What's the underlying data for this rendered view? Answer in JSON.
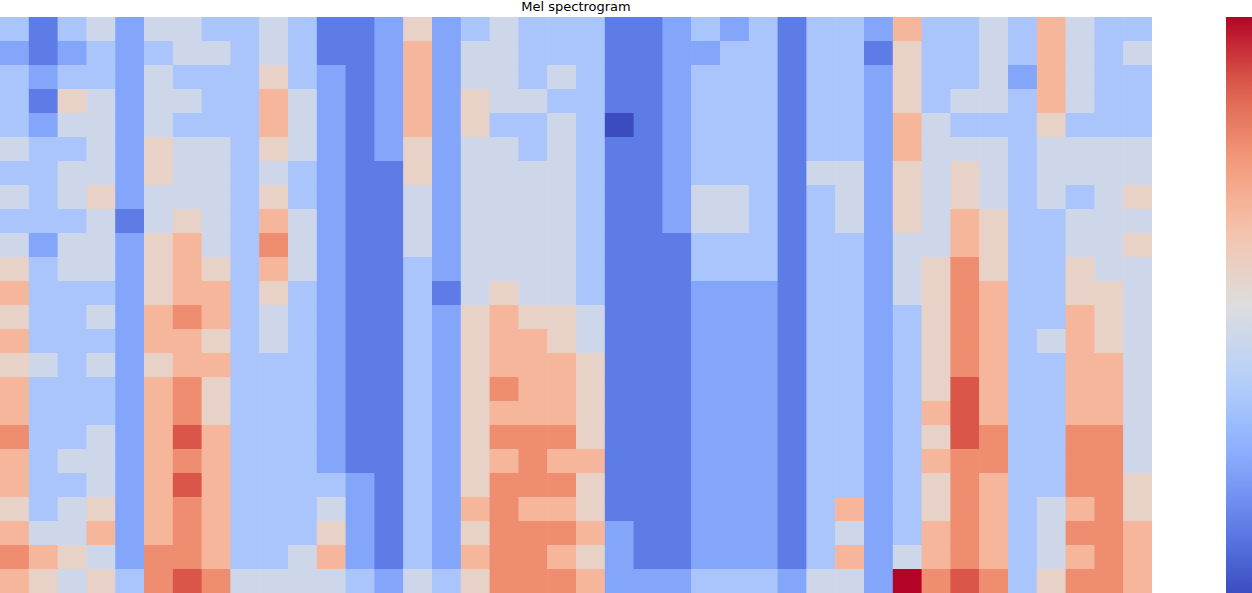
{
  "chart_data": {
    "type": "heatmap",
    "title": "Mel spectrogram",
    "color": "coolwarm",
    "tick_labels": false,
    "color_range": [
      0,
      9
    ],
    "cells": [
      [
        3,
        2,
        3,
        3,
        3,
        4,
        3,
        4,
        3,
        4,
        5,
        6,
        5,
        6,
        5,
        6,
        6,
        7,
        6,
        6,
        5,
        6,
        7,
        6
      ],
      [
        1,
        1,
        2,
        1,
        2,
        3,
        3,
        3,
        3,
        2,
        3,
        3,
        3,
        3,
        4,
        3,
        3,
        3,
        3,
        3,
        3,
        4,
        6,
        5
      ],
      [
        3,
        2,
        3,
        5,
        4,
        3,
        4,
        4,
        3,
        4,
        4,
        3,
        3,
        3,
        3,
        3,
        3,
        3,
        4,
        3,
        4,
        4,
        5,
        4
      ],
      [
        4,
        3,
        3,
        4,
        4,
        4,
        4,
        5,
        4,
        4,
        4,
        3,
        4,
        3,
        4,
        3,
        3,
        4,
        4,
        4,
        5,
        6,
        4,
        5
      ],
      [
        2,
        2,
        2,
        2,
        2,
        2,
        2,
        2,
        1,
        2,
        2,
        2,
        2,
        2,
        2,
        2,
        2,
        2,
        2,
        2,
        2,
        2,
        2,
        3
      ],
      [
        4,
        3,
        4,
        4,
        4,
        5,
        5,
        4,
        4,
        5,
        5,
        5,
        6,
        6,
        5,
        6,
        6,
        6,
        6,
        6,
        6,
        6,
        7,
        7
      ],
      [
        4,
        4,
        3,
        4,
        3,
        4,
        4,
        4,
        5,
        6,
        6,
        6,
        7,
        6,
        6,
        7,
        7,
        8,
        7,
        8,
        7,
        7,
        7,
        8
      ],
      [
        3,
        4,
        3,
        3,
        3,
        4,
        4,
        4,
        4,
        4,
        5,
        6,
        6,
        5,
        6,
        5,
        5,
        6,
        6,
        6,
        6,
        6,
        6,
        7
      ],
      [
        3,
        3,
        3,
        3,
        3,
        3,
        3,
        3,
        3,
        3,
        3,
        3,
        3,
        3,
        3,
        3,
        3,
        3,
        3,
        3,
        3,
        3,
        3,
        4
      ],
      [
        4,
        4,
        5,
        6,
        6,
        5,
        4,
        5,
        6,
        7,
        6,
        5,
        4,
        4,
        3,
        3,
        3,
        3,
        3,
        3,
        3,
        3,
        3,
        4
      ],
      [
        3,
        3,
        3,
        4,
        4,
        4,
        3,
        3,
        4,
        4,
        4,
        3,
        3,
        3,
        3,
        3,
        3,
        3,
        3,
        3,
        3,
        3,
        4,
        4
      ],
      [
        1,
        1,
        2,
        2,
        2,
        2,
        2,
        2,
        2,
        2,
        2,
        2,
        2,
        2,
        2,
        2,
        2,
        2,
        2,
        3,
        4,
        5,
        6,
        4
      ],
      [
        1,
        1,
        1,
        1,
        1,
        1,
        1,
        1,
        1,
        1,
        1,
        1,
        1,
        1,
        1,
        1,
        1,
        1,
        1,
        2,
        2,
        2,
        2,
        3
      ],
      [
        2,
        2,
        2,
        2,
        2,
        2,
        1,
        1,
        1,
        1,
        1,
        1,
        1,
        1,
        1,
        1,
        1,
        1,
        1,
        1,
        1,
        1,
        1,
        2
      ],
      [
        5,
        6,
        6,
        6,
        6,
        5,
        5,
        4,
        4,
        4,
        3,
        3,
        3,
        3,
        3,
        3,
        3,
        3,
        3,
        3,
        3,
        3,
        3,
        4
      ],
      [
        2,
        2,
        2,
        2,
        2,
        2,
        2,
        2,
        2,
        2,
        2,
        1,
        2,
        2,
        2,
        2,
        2,
        2,
        2,
        2,
        2,
        2,
        2,
        3
      ],
      [
        3,
        4,
        4,
        5,
        5,
        4,
        4,
        4,
        4,
        4,
        4,
        4,
        5,
        5,
        5,
        5,
        5,
        5,
        5,
        5,
        6,
        5,
        6,
        5
      ],
      [
        4,
        4,
        4,
        4,
        3,
        4,
        4,
        4,
        4,
        4,
        4,
        5,
        6,
        6,
        6,
        7,
        6,
        7,
        6,
        7,
        7,
        7,
        7,
        7
      ],
      [
        3,
        3,
        3,
        4,
        3,
        3,
        4,
        4,
        4,
        4,
        4,
        4,
        5,
        6,
        6,
        6,
        6,
        7,
        7,
        7,
        6,
        7,
        7,
        7
      ],
      [
        3,
        3,
        4,
        3,
        4,
        4,
        4,
        4,
        4,
        4,
        4,
        4,
        5,
        5,
        6,
        6,
        6,
        7,
        6,
        7,
        6,
        7,
        6,
        7
      ],
      [
        3,
        3,
        3,
        3,
        3,
        3,
        3,
        3,
        3,
        3,
        3,
        3,
        4,
        4,
        5,
        5,
        5,
        5,
        6,
        5,
        5,
        6,
        5,
        6
      ],
      [
        1,
        1,
        1,
        1,
        0,
        1,
        1,
        1,
        1,
        1,
        1,
        1,
        1,
        1,
        1,
        1,
        1,
        1,
        1,
        1,
        1,
        2,
        2,
        2
      ],
      [
        1,
        1,
        1,
        1,
        1,
        1,
        1,
        1,
        1,
        1,
        1,
        1,
        1,
        1,
        1,
        1,
        1,
        1,
        1,
        1,
        1,
        1,
        1,
        2
      ],
      [
        2,
        2,
        2,
        2,
        2,
        2,
        2,
        2,
        2,
        1,
        1,
        1,
        1,
        1,
        1,
        1,
        1,
        1,
        1,
        1,
        1,
        1,
        1,
        2
      ],
      [
        3,
        2,
        3,
        3,
        3,
        3,
        3,
        4,
        4,
        3,
        3,
        2,
        2,
        2,
        2,
        2,
        2,
        2,
        2,
        2,
        2,
        2,
        2,
        3
      ],
      [
        2,
        3,
        3,
        3,
        3,
        3,
        3,
        4,
        4,
        3,
        3,
        2,
        2,
        2,
        2,
        2,
        2,
        2,
        2,
        2,
        2,
        2,
        2,
        3
      ],
      [
        3,
        3,
        3,
        3,
        3,
        3,
        3,
        3,
        3,
        3,
        3,
        2,
        2,
        2,
        2,
        2,
        2,
        2,
        2,
        2,
        2,
        2,
        2,
        3
      ],
      [
        1,
        1,
        1,
        1,
        1,
        1,
        1,
        1,
        1,
        1,
        1,
        1,
        1,
        1,
        1,
        1,
        1,
        1,
        1,
        1,
        1,
        1,
        1,
        2
      ],
      [
        3,
        3,
        3,
        3,
        3,
        3,
        4,
        3,
        3,
        3,
        3,
        3,
        3,
        3,
        3,
        3,
        3,
        3,
        3,
        3,
        3,
        3,
        3,
        4
      ],
      [
        3,
        3,
        3,
        3,
        3,
        3,
        4,
        4,
        4,
        3,
        3,
        3,
        3,
        3,
        3,
        3,
        3,
        3,
        3,
        3,
        6,
        4,
        6,
        4
      ],
      [
        2,
        1,
        2,
        2,
        2,
        2,
        2,
        2,
        2,
        2,
        2,
        2,
        2,
        2,
        2,
        2,
        2,
        2,
        2,
        2,
        2,
        2,
        2,
        2
      ],
      [
        6,
        5,
        5,
        5,
        6,
        6,
        5,
        5,
        5,
        4,
        4,
        4,
        3,
        3,
        3,
        3,
        3,
        3,
        3,
        3,
        3,
        3,
        4,
        9
      ],
      [
        3,
        3,
        3,
        3,
        4,
        4,
        4,
        4,
        4,
        4,
        5,
        5,
        5,
        5,
        5,
        5,
        6,
        5,
        6,
        5,
        5,
        6,
        6,
        7
      ],
      [
        3,
        3,
        3,
        4,
        3,
        4,
        5,
        5,
        6,
        6,
        7,
        7,
        7,
        7,
        7,
        8,
        8,
        8,
        7,
        7,
        7,
        7,
        7,
        8
      ],
      [
        4,
        4,
        4,
        4,
        3,
        4,
        4,
        4,
        5,
        5,
        5,
        6,
        6,
        6,
        6,
        6,
        6,
        7,
        7,
        6,
        6,
        6,
        6,
        7
      ],
      [
        3,
        3,
        2,
        3,
        3,
        3,
        3,
        3,
        3,
        3,
        3,
        3,
        3,
        3,
        3,
        3,
        3,
        3,
        3,
        3,
        3,
        3,
        3,
        3
      ],
      [
        6,
        6,
        6,
        6,
        5,
        4,
        4,
        4,
        3,
        3,
        3,
        3,
        3,
        4,
        3,
        3,
        3,
        3,
        3,
        3,
        4,
        4,
        4,
        5
      ],
      [
        4,
        4,
        4,
        4,
        3,
        4,
        4,
        3,
        4,
        4,
        5,
        5,
        6,
        6,
        6,
        6,
        6,
        7,
        7,
        7,
        6,
        7,
        6,
        7
      ],
      [
        3,
        3,
        3,
        3,
        3,
        4,
        4,
        4,
        4,
        4,
        4,
        5,
        5,
        5,
        6,
        6,
        6,
        7,
        7,
        7,
        7,
        7,
        7,
        7
      ],
      [
        3,
        4,
        3,
        3,
        3,
        4,
        4,
        5,
        4,
        5,
        4,
        4,
        4,
        4,
        4,
        4,
        4,
        4,
        4,
        5,
        5,
        6,
        6,
        6
      ]
    ]
  }
}
